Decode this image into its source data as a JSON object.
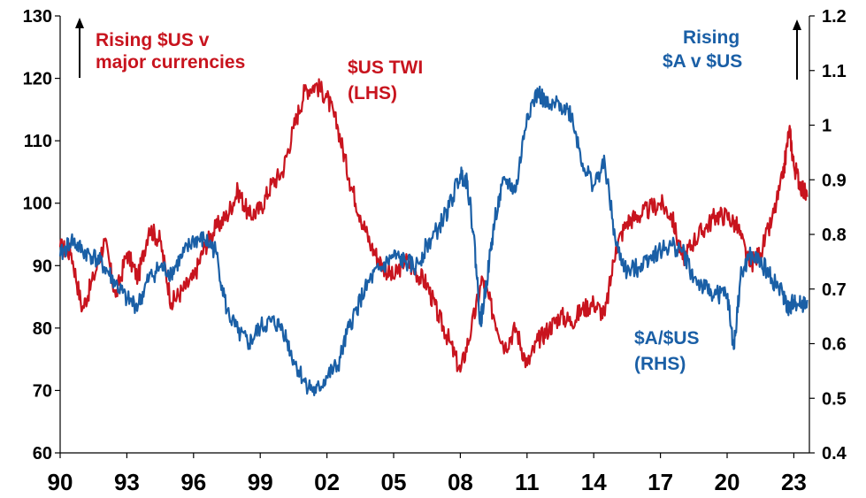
{
  "chart_data": {
    "type": "line",
    "x_ticks": [
      "90",
      "93",
      "96",
      "99",
      "02",
      "05",
      "08",
      "11",
      "14",
      "17",
      "20",
      "23"
    ],
    "x_range": [
      1990,
      2023.7
    ],
    "y_left": {
      "range": [
        60,
        130
      ],
      "ticks": [
        60,
        70,
        80,
        90,
        100,
        110,
        120,
        130
      ]
    },
    "y_right": {
      "range": [
        0.4,
        1.2
      ],
      "ticks": [
        "0.4",
        "0.5",
        "0.6",
        "0.7",
        "0.8",
        "0.9",
        "1",
        "1.1",
        "1.2"
      ]
    },
    "grid": false,
    "legend": "none (series labelled directly on chart)",
    "series": [
      {
        "name": "$US TWI (LHS)",
        "axis": "left",
        "color": "#c8141e",
        "x": [
          1990.0,
          1990.5,
          1991.0,
          1991.5,
          1992.0,
          1992.5,
          1993.0,
          1993.5,
          1994.0,
          1994.5,
          1995.0,
          1995.5,
          1996.0,
          1996.5,
          1997.0,
          1997.5,
          1998.0,
          1998.5,
          1999.0,
          1999.5,
          2000.0,
          2000.5,
          2001.0,
          2001.5,
          2002.0,
          2002.5,
          2003.0,
          2003.5,
          2004.0,
          2004.5,
          2005.0,
          2005.5,
          2006.0,
          2006.5,
          2007.0,
          2007.5,
          2008.0,
          2008.5,
          2009.0,
          2009.5,
          2010.0,
          2010.5,
          2011.0,
          2011.5,
          2012.0,
          2012.5,
          2013.0,
          2013.5,
          2014.0,
          2014.5,
          2015.0,
          2015.5,
          2016.0,
          2016.5,
          2017.0,
          2017.5,
          2018.0,
          2018.5,
          2019.0,
          2019.5,
          2020.0,
          2020.5,
          2021.0,
          2021.5,
          2022.0,
          2022.5,
          2022.8,
          2023.0,
          2023.3,
          2023.6
        ],
        "values": [
          93,
          92,
          83,
          88,
          94,
          85,
          92,
          88,
          96,
          94,
          84,
          86,
          88,
          93,
          96,
          98,
          102,
          98,
          99,
          103,
          105,
          112,
          118,
          119,
          117,
          112,
          104,
          98,
          93,
          90,
          88,
          91,
          89,
          87,
          82,
          78,
          73,
          80,
          88,
          82,
          77,
          80,
          74,
          78,
          80,
          82,
          81,
          83,
          84,
          82,
          93,
          97,
          98,
          99,
          100,
          98,
          91,
          94,
          96,
          98,
          98,
          96,
          90,
          92,
          97,
          104,
          112,
          106,
          103,
          101
        ]
      },
      {
        "name": "$A/$US (RHS)",
        "axis": "right",
        "color": "#1a5fa6",
        "x": [
          1990.0,
          1990.5,
          1991.0,
          1991.5,
          1992.0,
          1992.5,
          1993.0,
          1993.5,
          1994.0,
          1994.5,
          1995.0,
          1995.5,
          1996.0,
          1996.5,
          1997.0,
          1997.5,
          1998.0,
          1998.5,
          1999.0,
          1999.5,
          2000.0,
          2000.5,
          2001.0,
          2001.5,
          2002.0,
          2002.5,
          2003.0,
          2003.5,
          2004.0,
          2004.5,
          2005.0,
          2005.5,
          2006.0,
          2006.5,
          2007.0,
          2007.5,
          2008.0,
          2008.3,
          2008.6,
          2008.9,
          2009.0,
          2009.3,
          2009.6,
          2010.0,
          2010.5,
          2011.0,
          2011.5,
          2012.0,
          2012.5,
          2013.0,
          2013.5,
          2014.0,
          2014.5,
          2015.0,
          2015.5,
          2016.0,
          2016.5,
          2017.0,
          2017.5,
          2018.0,
          2018.5,
          2019.0,
          2019.5,
          2020.0,
          2020.3,
          2020.6,
          2021.0,
          2021.5,
          2022.0,
          2022.5,
          2022.8,
          2023.0,
          2023.3,
          2023.6
        ],
        "values": [
          0.76,
          0.79,
          0.77,
          0.76,
          0.74,
          0.71,
          0.68,
          0.67,
          0.72,
          0.74,
          0.73,
          0.76,
          0.79,
          0.79,
          0.77,
          0.66,
          0.62,
          0.6,
          0.63,
          0.64,
          0.63,
          0.57,
          0.53,
          0.51,
          0.54,
          0.56,
          0.63,
          0.68,
          0.72,
          0.74,
          0.76,
          0.75,
          0.74,
          0.78,
          0.81,
          0.85,
          0.91,
          0.9,
          0.8,
          0.64,
          0.66,
          0.75,
          0.84,
          0.9,
          0.88,
          1.02,
          1.06,
          1.03,
          1.04,
          1.02,
          0.93,
          0.89,
          0.93,
          0.78,
          0.73,
          0.74,
          0.76,
          0.77,
          0.78,
          0.77,
          0.72,
          0.7,
          0.69,
          0.69,
          0.59,
          0.72,
          0.76,
          0.75,
          0.72,
          0.69,
          0.66,
          0.68,
          0.67,
          0.68
        ]
      }
    ],
    "annotations": {
      "left_note": [
        "Rising $US v",
        "major currencies"
      ],
      "twi_label": [
        "$US TWI",
        "(LHS)"
      ],
      "right_note": [
        "Rising",
        "$A v $US"
      ],
      "aud_label": [
        "$A/$US",
        "(RHS)"
      ]
    }
  }
}
